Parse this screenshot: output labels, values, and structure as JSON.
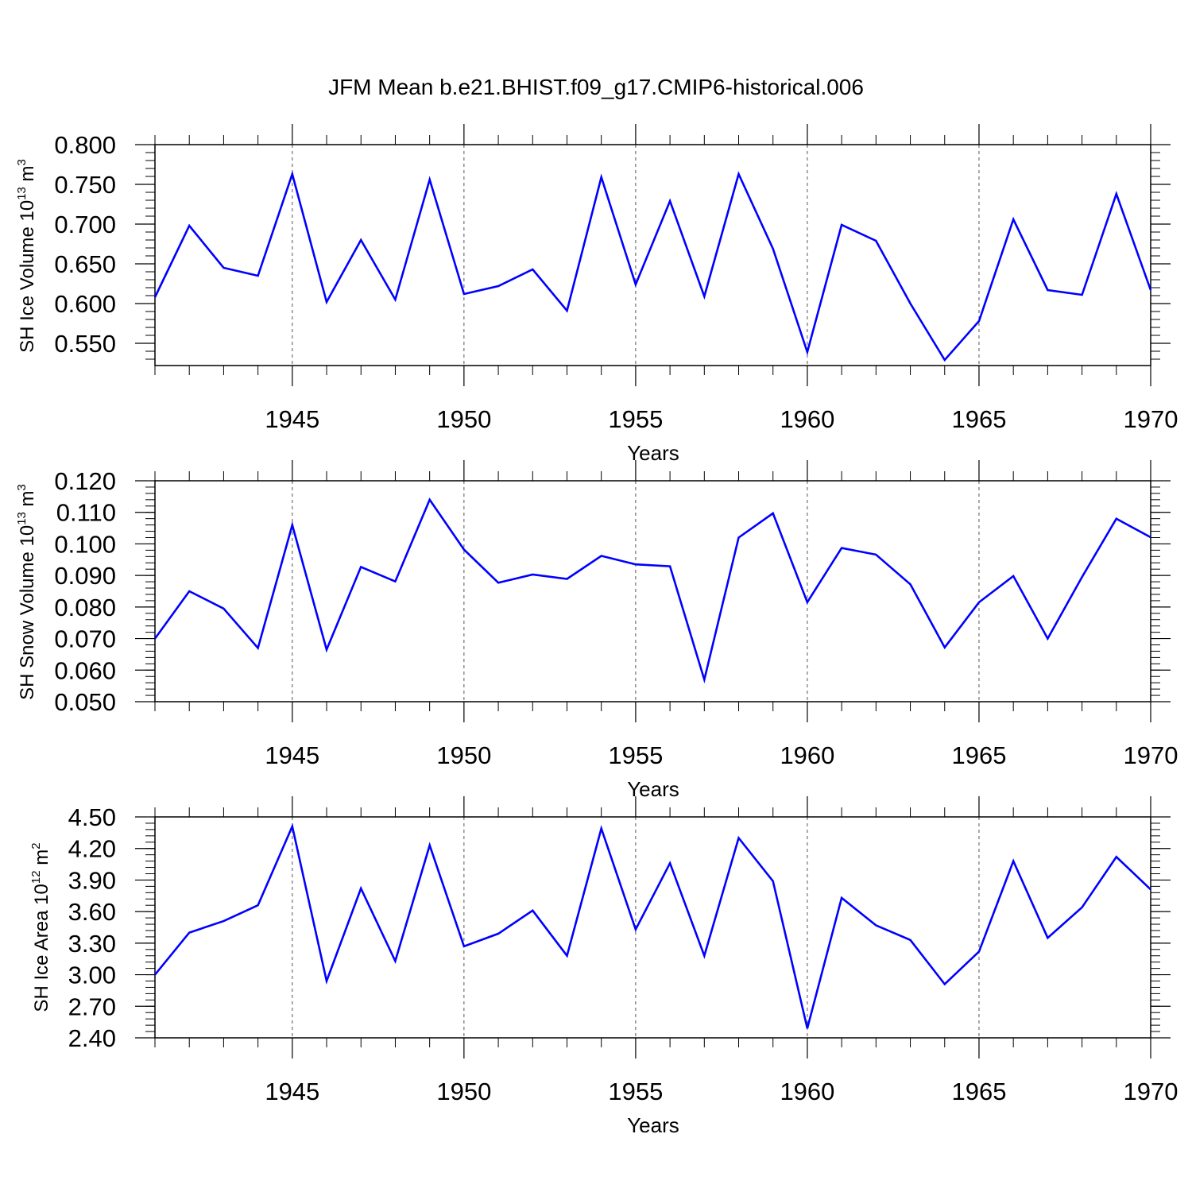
{
  "title": "JFM Mean b.e21.BHIST.f09_g17.CMIP6-historical.006",
  "styles": {
    "line_color": "#0000ff",
    "axis_color": "#000000",
    "grid_color": "#555555"
  },
  "chart_data": [
    {
      "type": "line",
      "ylabel_main": "SH Ice Volume 10",
      "ylabel_exp": "13",
      "ylabel_unit": " m",
      "ylabel_unit_exp": "3",
      "xlabel": "Years",
      "xlim": [
        1941,
        1970
      ],
      "ylim": [
        0.522,
        0.8
      ],
      "yticks": [
        0.55,
        0.6,
        0.65,
        0.7,
        0.75,
        0.8
      ],
      "ytick_labels": [
        "0.550",
        "0.600",
        "0.650",
        "0.700",
        "0.750",
        "0.800"
      ],
      "ytick_minor_step": 0.01,
      "xticks": [
        1945,
        1950,
        1955,
        1960,
        1965,
        1970
      ],
      "xtick_labels": [
        "1945",
        "1950",
        "1955",
        "1960",
        "1965",
        "1970"
      ],
      "grid": "vertical dashed at major x ticks",
      "series": [
        {
          "x": [
            1941,
            1942,
            1943,
            1944,
            1945,
            1946,
            1947,
            1948,
            1949,
            1950,
            1951,
            1952,
            1953,
            1954,
            1955,
            1956,
            1957,
            1958,
            1959,
            1960,
            1961,
            1962,
            1963,
            1964,
            1965,
            1966,
            1967,
            1968,
            1969,
            1970
          ],
          "values": [
            0.608,
            0.698,
            0.645,
            0.635,
            0.763,
            0.602,
            0.68,
            0.605,
            0.756,
            0.612,
            0.622,
            0.643,
            0.591,
            0.759,
            0.624,
            0.729,
            0.609,
            0.763,
            0.669,
            0.539,
            0.699,
            0.679,
            0.6,
            0.529,
            0.578,
            0.706,
            0.617,
            0.611,
            0.738,
            0.617
          ]
        }
      ]
    },
    {
      "type": "line",
      "ylabel_main": "SH Snow Volume 10",
      "ylabel_exp": "13",
      "ylabel_unit": " m",
      "ylabel_unit_exp": "3",
      "xlabel": "Years",
      "xlim": [
        1941,
        1970
      ],
      "ylim": [
        0.05,
        0.12
      ],
      "yticks": [
        0.05,
        0.06,
        0.07,
        0.08,
        0.09,
        0.1,
        0.11,
        0.12
      ],
      "ytick_labels": [
        "0.050",
        "0.060",
        "0.070",
        "0.080",
        "0.090",
        "0.100",
        "0.110",
        "0.120"
      ],
      "ytick_minor_step": 0.002,
      "xticks": [
        1945,
        1950,
        1955,
        1960,
        1965,
        1970
      ],
      "xtick_labels": [
        "1945",
        "1950",
        "1955",
        "1960",
        "1965",
        "1970"
      ],
      "grid": "vertical dashed at major x ticks",
      "series": [
        {
          "x": [
            1941,
            1942,
            1943,
            1944,
            1945,
            1946,
            1947,
            1948,
            1949,
            1950,
            1951,
            1952,
            1953,
            1954,
            1955,
            1956,
            1957,
            1958,
            1959,
            1960,
            1961,
            1962,
            1963,
            1964,
            1965,
            1966,
            1967,
            1968,
            1969,
            1970
          ],
          "values": [
            0.07,
            0.085,
            0.0795,
            0.067,
            0.106,
            0.0665,
            0.0927,
            0.0881,
            0.114,
            0.0982,
            0.0877,
            0.0903,
            0.0889,
            0.0962,
            0.0935,
            0.0929,
            0.057,
            0.102,
            0.1097,
            0.0815,
            0.0987,
            0.0966,
            0.0872,
            0.0672,
            0.0815,
            0.0898,
            0.07,
            0.0895,
            0.108,
            0.1021
          ]
        }
      ]
    },
    {
      "type": "line",
      "ylabel_main": "SH Ice Area 10",
      "ylabel_exp": "12",
      "ylabel_unit": " m",
      "ylabel_unit_exp": "2",
      "xlabel": "Years",
      "xlim": [
        1941,
        1970
      ],
      "ylim": [
        2.4,
        4.5
      ],
      "yticks": [
        2.4,
        2.7,
        3.0,
        3.3,
        3.6,
        3.9,
        4.2,
        4.5
      ],
      "ytick_labels": [
        "2.40",
        "2.70",
        "3.00",
        "3.30",
        "3.60",
        "3.90",
        "4.20",
        "4.50"
      ],
      "ytick_minor_step": 0.06,
      "xticks": [
        1945,
        1950,
        1955,
        1960,
        1965,
        1970
      ],
      "xtick_labels": [
        "1945",
        "1950",
        "1955",
        "1960",
        "1965",
        "1970"
      ],
      "grid": "vertical dashed at major x ticks",
      "series": [
        {
          "x": [
            1941,
            1942,
            1943,
            1944,
            1945,
            1946,
            1947,
            1948,
            1949,
            1950,
            1951,
            1952,
            1953,
            1954,
            1955,
            1956,
            1957,
            1958,
            1959,
            1960,
            1961,
            1962,
            1963,
            1964,
            1965,
            1966,
            1967,
            1968,
            1969,
            1970
          ],
          "values": [
            3.0,
            3.4,
            3.51,
            3.66,
            4.41,
            2.94,
            3.82,
            3.13,
            4.23,
            3.27,
            3.39,
            3.61,
            3.18,
            4.39,
            3.43,
            4.06,
            3.18,
            4.3,
            3.89,
            2.49,
            3.73,
            3.47,
            3.33,
            2.91,
            3.22,
            4.08,
            3.35,
            3.64,
            4.12,
            3.81
          ]
        }
      ]
    }
  ]
}
